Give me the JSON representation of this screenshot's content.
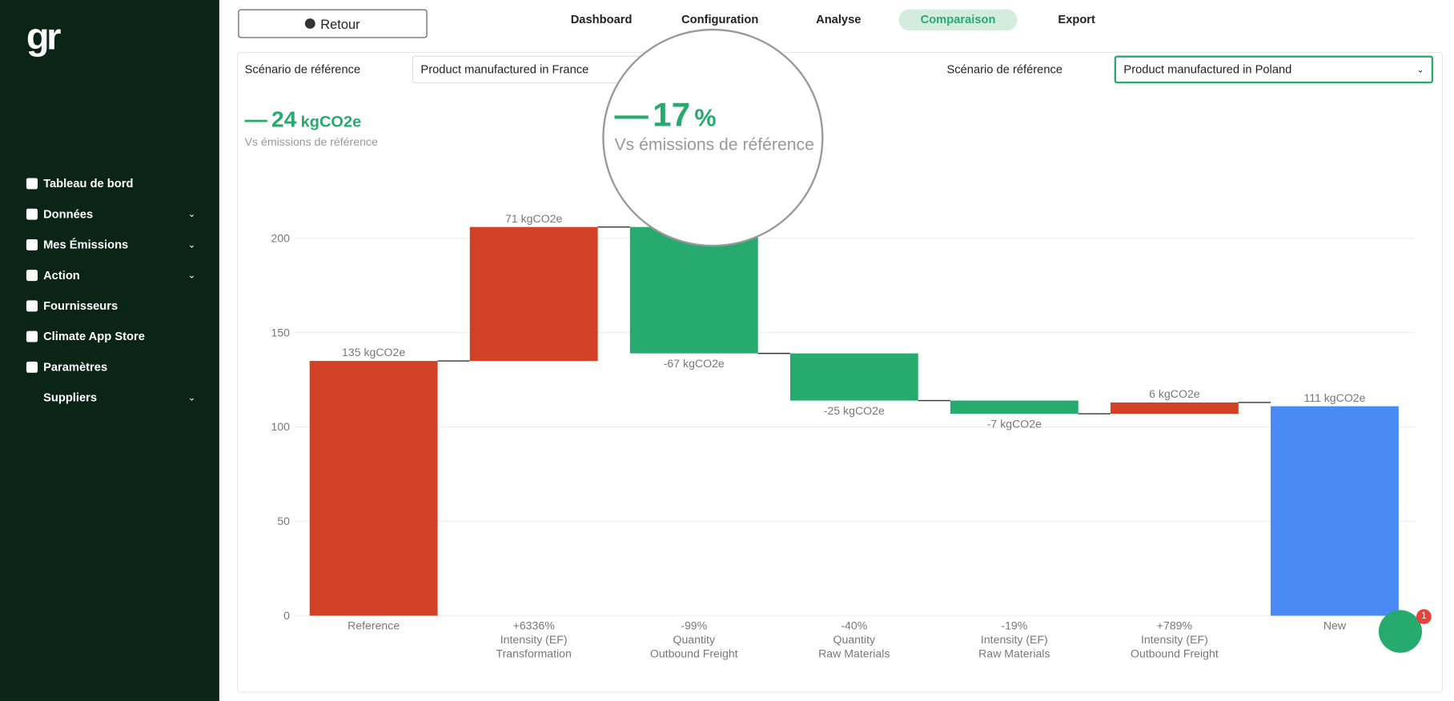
{
  "sidebar": {
    "logo": "gr",
    "items": [
      {
        "label": "Tableau de bord",
        "expandable": false
      },
      {
        "label": "Données",
        "expandable": true
      },
      {
        "label": "Mes Émissions",
        "expandable": true
      },
      {
        "label": "Action",
        "expandable": true
      },
      {
        "label": "Fournisseurs",
        "expandable": false
      },
      {
        "label": "Climate App Store",
        "expandable": false
      },
      {
        "label": "Paramètres",
        "expandable": false
      },
      {
        "label": "Suppliers",
        "expandable": true
      }
    ]
  },
  "header": {
    "back": "Retour",
    "tabs": [
      "Dashboard",
      "Configuration",
      "Analyse",
      "Comparaison",
      "Export"
    ],
    "active_tab": "Comparaison"
  },
  "scenarios": [
    {
      "label": "Scénario de référence",
      "value": "Product manufactured in France"
    },
    {
      "label": "Scénario de référence",
      "value": "Product manufactured in Poland"
    }
  ],
  "summary": {
    "sign": "—",
    "value": 24,
    "unit": "kgCO2e",
    "caption": "Vs émissions de référence"
  },
  "zoom": {
    "sign": "—",
    "value": 17,
    "unit": "%",
    "caption": "Vs émissions de référence"
  },
  "chat_badge": 1,
  "chart_data": {
    "type": "waterfall",
    "categories": [
      [
        "Reference"
      ],
      [
        "+6336%",
        "Intensity (EF)",
        "Transformation"
      ],
      [
        "-99%",
        "Quantity",
        "Outbound Freight"
      ],
      [
        "-40%",
        "Quantity",
        "Raw Materials"
      ],
      [
        "-19%",
        "Intensity (EF)",
        "Raw Materials"
      ],
      [
        "+789%",
        "Intensity (EF)",
        "Outbound Freight"
      ],
      [
        "New"
      ]
    ],
    "values": [
      135,
      71,
      -67,
      -25,
      -7,
      6,
      111
    ],
    "value_labels": [
      "135 kgCO2e",
      "71 kgCO2e",
      "-67 kgCO2e",
      "-25 kgCO2e",
      "-7 kgCO2e",
      "6 kgCO2e",
      "111 kgCO2e"
    ],
    "measures": [
      "absolute",
      "relative",
      "relative",
      "relative",
      "relative",
      "relative",
      "total"
    ],
    "colors": [
      "#d24125",
      "#d24125",
      "#27aa6e",
      "#27aa6e",
      "#27aa6e",
      "#d24125",
      "#4a8af4"
    ],
    "ylim": [
      0,
      225
    ],
    "yticks": [
      0,
      50,
      100,
      150,
      200
    ],
    "grid": true
  }
}
